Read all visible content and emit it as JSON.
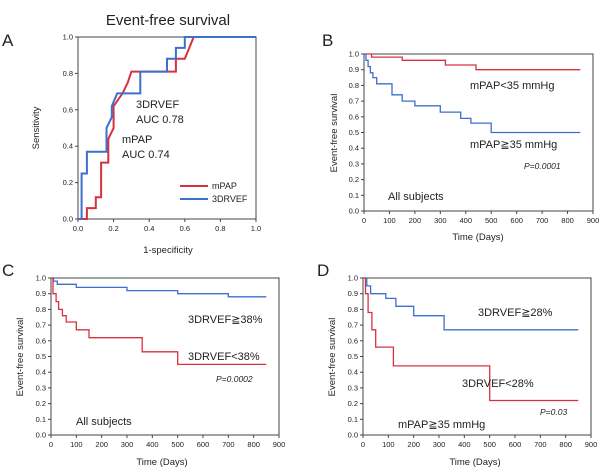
{
  "colors": {
    "red": "#d9303f",
    "blue": "#3d6fcf",
    "axis": "#444444"
  },
  "chart_data": [
    {
      "panel": "A",
      "type": "line",
      "title": "Event-free survival",
      "xlabel": "1-specificity",
      "ylabel": "Sensitivity",
      "xlim": [
        0,
        1
      ],
      "ylim": [
        0,
        1
      ],
      "xticks": [
        "0.0",
        "0.2",
        "0.4",
        "0.6",
        "0.8",
        "1.0"
      ],
      "yticks": [
        "0.0",
        "0.2",
        "0.4",
        "0.6",
        "0.8",
        "1.0"
      ],
      "annotations": [
        {
          "id": "rvef_name",
          "text": "3DRVEF"
        },
        {
          "id": "rvef_auc",
          "text": "AUC 0.78"
        },
        {
          "id": "mpap_name",
          "text": "mPAP"
        },
        {
          "id": "mpap_auc",
          "text": "AUC 0.74"
        }
      ],
      "legend": {
        "position": "bottom-right",
        "entries": [
          "mPAP",
          "3DRVEF"
        ]
      },
      "series": [
        {
          "name": "mPAP",
          "color": "red",
          "points": [
            [
              0,
              0
            ],
            [
              0.05,
              0
            ],
            [
              0.05,
              0.06
            ],
            [
              0.1,
              0.06
            ],
            [
              0.1,
              0.12
            ],
            [
              0.13,
              0.12
            ],
            [
              0.13,
              0.31
            ],
            [
              0.17,
              0.31
            ],
            [
              0.17,
              0.44
            ],
            [
              0.2,
              0.5
            ],
            [
              0.2,
              0.62
            ],
            [
              0.25,
              0.69
            ],
            [
              0.28,
              0.75
            ],
            [
              0.3,
              0.81
            ],
            [
              0.52,
              0.81
            ],
            [
              0.55,
              0.81
            ],
            [
              0.55,
              0.88
            ],
            [
              0.6,
              0.88
            ],
            [
              0.65,
              1
            ],
            [
              1,
              1
            ]
          ]
        },
        {
          "name": "3DRVEF",
          "color": "blue",
          "points": [
            [
              0,
              0
            ],
            [
              0.02,
              0
            ],
            [
              0.02,
              0.25
            ],
            [
              0.05,
              0.25
            ],
            [
              0.05,
              0.37
            ],
            [
              0.16,
              0.37
            ],
            [
              0.16,
              0.5
            ],
            [
              0.19,
              0.56
            ],
            [
              0.19,
              0.62
            ],
            [
              0.22,
              0.69
            ],
            [
              0.35,
              0.69
            ],
            [
              0.35,
              0.81
            ],
            [
              0.5,
              0.81
            ],
            [
              0.5,
              0.88
            ],
            [
              0.55,
              0.88
            ],
            [
              0.55,
              0.94
            ],
            [
              0.6,
              0.94
            ],
            [
              0.6,
              1
            ],
            [
              1,
              1
            ]
          ]
        }
      ]
    },
    {
      "panel": "B",
      "type": "line",
      "xlabel": "Time (Days)",
      "ylabel": "Event-free survival",
      "xlim": [
        0,
        900
      ],
      "ylim": [
        0,
        1
      ],
      "xticks": [
        "0",
        "100",
        "200",
        "300",
        "400",
        "500",
        "600",
        "700",
        "800",
        "900"
      ],
      "yticks": [
        "0.0",
        "0.1",
        "0.2",
        "0.3",
        "0.4",
        "0.5",
        "0.6",
        "0.7",
        "0.8",
        "0.9",
        "1.0"
      ],
      "labels": [
        {
          "id": "lo",
          "text": "mPAP<35 mmHg"
        },
        {
          "id": "hi",
          "text": "mPAP≧35 mmHg"
        },
        {
          "id": "p",
          "text": "P=0.0001"
        },
        {
          "id": "subj",
          "text": "All subjects"
        }
      ],
      "series": [
        {
          "name": "mPAP<35 mmHg",
          "color": "red",
          "points": [
            [
              0,
              1
            ],
            [
              30,
              1
            ],
            [
              30,
              0.98
            ],
            [
              150,
              0.98
            ],
            [
              150,
              0.96
            ],
            [
              320,
              0.96
            ],
            [
              320,
              0.93
            ],
            [
              440,
              0.93
            ],
            [
              440,
              0.9
            ],
            [
              850,
              0.9
            ]
          ]
        },
        {
          "name": "mPAP≧35 mmHg",
          "color": "blue",
          "points": [
            [
              0,
              1
            ],
            [
              8,
              1
            ],
            [
              8,
              0.96
            ],
            [
              16,
              0.96
            ],
            [
              16,
              0.92
            ],
            [
              25,
              0.92
            ],
            [
              25,
              0.88
            ],
            [
              35,
              0.88
            ],
            [
              35,
              0.85
            ],
            [
              50,
              0.85
            ],
            [
              50,
              0.81
            ],
            [
              110,
              0.81
            ],
            [
              110,
              0.74
            ],
            [
              150,
              0.74
            ],
            [
              150,
              0.7
            ],
            [
              200,
              0.7
            ],
            [
              200,
              0.67
            ],
            [
              300,
              0.67
            ],
            [
              300,
              0.63
            ],
            [
              380,
              0.63
            ],
            [
              380,
              0.59
            ],
            [
              420,
              0.59
            ],
            [
              420,
              0.56
            ],
            [
              500,
              0.56
            ],
            [
              500,
              0.5
            ],
            [
              850,
              0.5
            ]
          ]
        }
      ]
    },
    {
      "panel": "C",
      "type": "line",
      "xlabel": "Time (Days)",
      "ylabel": "Event-free survival",
      "xlim": [
        0,
        900
      ],
      "ylim": [
        0,
        1
      ],
      "xticks": [
        "0",
        "100",
        "200",
        "300",
        "400",
        "500",
        "600",
        "700",
        "800",
        "900"
      ],
      "yticks": [
        "0.0",
        "0.1",
        "0.2",
        "0.3",
        "0.4",
        "0.5",
        "0.6",
        "0.7",
        "0.8",
        "0.9",
        "1.0"
      ],
      "labels": [
        {
          "id": "hi",
          "text": "3DRVEF≧38%"
        },
        {
          "id": "lo",
          "text": "3DRVEF<38%"
        },
        {
          "id": "p",
          "text": "P=0.0002"
        },
        {
          "id": "subj",
          "text": "All subjects"
        }
      ],
      "series": [
        {
          "name": "3DRVEF≧38%",
          "color": "blue",
          "points": [
            [
              0,
              1
            ],
            [
              10,
              1
            ],
            [
              10,
              0.98
            ],
            [
              25,
              0.98
            ],
            [
              25,
              0.96
            ],
            [
              100,
              0.96
            ],
            [
              100,
              0.94
            ],
            [
              300,
              0.94
            ],
            [
              300,
              0.92
            ],
            [
              500,
              0.92
            ],
            [
              500,
              0.9
            ],
            [
              700,
              0.9
            ],
            [
              700,
              0.88
            ],
            [
              850,
              0.88
            ]
          ]
        },
        {
          "name": "3DRVEF<38%",
          "color": "red",
          "points": [
            [
              0,
              1
            ],
            [
              8,
              1
            ],
            [
              8,
              0.9
            ],
            [
              20,
              0.9
            ],
            [
              20,
              0.85
            ],
            [
              30,
              0.85
            ],
            [
              30,
              0.8
            ],
            [
              45,
              0.8
            ],
            [
              45,
              0.76
            ],
            [
              60,
              0.76
            ],
            [
              60,
              0.72
            ],
            [
              100,
              0.72
            ],
            [
              100,
              0.67
            ],
            [
              150,
              0.67
            ],
            [
              150,
              0.62
            ],
            [
              360,
              0.62
            ],
            [
              360,
              0.53
            ],
            [
              500,
              0.53
            ],
            [
              500,
              0.45
            ],
            [
              850,
              0.45
            ]
          ]
        }
      ]
    },
    {
      "panel": "D",
      "type": "line",
      "xlabel": "Time (Days)",
      "ylabel": "Event-free survival",
      "xlim": [
        0,
        900
      ],
      "ylim": [
        0,
        1
      ],
      "xticks": [
        "0",
        "100",
        "200",
        "300",
        "400",
        "500",
        "600",
        "700",
        "800",
        "900"
      ],
      "yticks": [
        "0.0",
        "0.1",
        "0.2",
        "0.3",
        "0.4",
        "0.5",
        "0.6",
        "0.7",
        "0.8",
        "0.9",
        "1.0"
      ],
      "labels": [
        {
          "id": "hi",
          "text": "3DRVEF≧28%"
        },
        {
          "id": "lo",
          "text": "3DRVEF<28%"
        },
        {
          "id": "p",
          "text": "P=0.03"
        },
        {
          "id": "subj",
          "text": "mPAP≧35 mmHg"
        }
      ],
      "series": [
        {
          "name": "3DRVEF≧28%",
          "color": "blue",
          "points": [
            [
              0,
              1
            ],
            [
              15,
              1
            ],
            [
              15,
              0.95
            ],
            [
              30,
              0.95
            ],
            [
              30,
              0.9
            ],
            [
              90,
              0.9
            ],
            [
              90,
              0.87
            ],
            [
              130,
              0.87
            ],
            [
              130,
              0.82
            ],
            [
              200,
              0.82
            ],
            [
              200,
              0.76
            ],
            [
              320,
              0.76
            ],
            [
              320,
              0.67
            ],
            [
              850,
              0.67
            ]
          ]
        },
        {
          "name": "3DRVEF<28%",
          "color": "red",
          "points": [
            [
              0,
              1
            ],
            [
              10,
              1
            ],
            [
              10,
              0.9
            ],
            [
              20,
              0.9
            ],
            [
              20,
              0.78
            ],
            [
              35,
              0.78
            ],
            [
              35,
              0.67
            ],
            [
              50,
              0.67
            ],
            [
              50,
              0.56
            ],
            [
              120,
              0.56
            ],
            [
              120,
              0.44
            ],
            [
              500,
              0.44
            ],
            [
              500,
              0.22
            ],
            [
              850,
              0.22
            ]
          ]
        }
      ]
    }
  ]
}
